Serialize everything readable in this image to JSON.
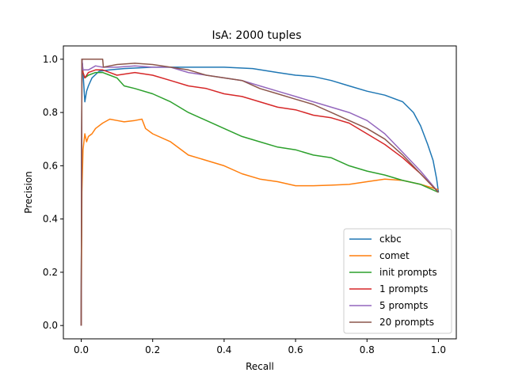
{
  "chart_data": {
    "type": "line",
    "title": "IsA: 2000 tuples",
    "xlabel": "Recall",
    "ylabel": "Precision",
    "xlim": [
      -0.05,
      1.05
    ],
    "ylim": [
      -0.05,
      1.05
    ],
    "xticks": [
      "0.0",
      "0.2",
      "0.4",
      "0.6",
      "0.8",
      "1.0"
    ],
    "yticks": [
      "0.0",
      "0.2",
      "0.4",
      "0.6",
      "0.8",
      "1.0"
    ],
    "grid": false,
    "legend_position": "lower-right",
    "series": [
      {
        "name": "ckbc",
        "color": "#1f77b4",
        "points": [
          [
            0,
            0
          ],
          [
            0.002,
            1.0
          ],
          [
            0.005,
            0.95
          ],
          [
            0.01,
            0.84
          ],
          [
            0.015,
            0.88
          ],
          [
            0.02,
            0.9
          ],
          [
            0.03,
            0.93
          ],
          [
            0.05,
            0.955
          ],
          [
            0.08,
            0.96
          ],
          [
            0.12,
            0.965
          ],
          [
            0.2,
            0.97
          ],
          [
            0.3,
            0.97
          ],
          [
            0.4,
            0.97
          ],
          [
            0.48,
            0.965
          ],
          [
            0.55,
            0.95
          ],
          [
            0.6,
            0.94
          ],
          [
            0.65,
            0.935
          ],
          [
            0.7,
            0.92
          ],
          [
            0.75,
            0.9
          ],
          [
            0.8,
            0.88
          ],
          [
            0.85,
            0.865
          ],
          [
            0.9,
            0.84
          ],
          [
            0.93,
            0.8
          ],
          [
            0.95,
            0.75
          ],
          [
            0.97,
            0.68
          ],
          [
            0.985,
            0.62
          ],
          [
            0.995,
            0.55
          ],
          [
            1.0,
            0.5
          ]
        ]
      },
      {
        "name": "comet",
        "color": "#ff7f0e",
        "points": [
          [
            0,
            0
          ],
          [
            0.002,
            0.5
          ],
          [
            0.005,
            0.66
          ],
          [
            0.01,
            0.72
          ],
          [
            0.015,
            0.69
          ],
          [
            0.02,
            0.71
          ],
          [
            0.03,
            0.72
          ],
          [
            0.04,
            0.74
          ],
          [
            0.06,
            0.76
          ],
          [
            0.08,
            0.775
          ],
          [
            0.1,
            0.77
          ],
          [
            0.12,
            0.765
          ],
          [
            0.15,
            0.77
          ],
          [
            0.17,
            0.775
          ],
          [
            0.18,
            0.74
          ],
          [
            0.2,
            0.72
          ],
          [
            0.25,
            0.69
          ],
          [
            0.3,
            0.64
          ],
          [
            0.35,
            0.62
          ],
          [
            0.4,
            0.6
          ],
          [
            0.45,
            0.57
          ],
          [
            0.5,
            0.55
          ],
          [
            0.55,
            0.54
          ],
          [
            0.6,
            0.525
          ],
          [
            0.65,
            0.525
          ],
          [
            0.7,
            0.527
          ],
          [
            0.75,
            0.53
          ],
          [
            0.8,
            0.54
          ],
          [
            0.85,
            0.55
          ],
          [
            0.9,
            0.545
          ],
          [
            0.95,
            0.53
          ],
          [
            1.0,
            0.51
          ]
        ]
      },
      {
        "name": "init prompts",
        "color": "#2ca02c",
        "points": [
          [
            0,
            0
          ],
          [
            0.002,
            1.0
          ],
          [
            0.005,
            0.95
          ],
          [
            0.01,
            0.93
          ],
          [
            0.02,
            0.94
          ],
          [
            0.04,
            0.95
          ],
          [
            0.06,
            0.95
          ],
          [
            0.08,
            0.94
          ],
          [
            0.1,
            0.93
          ],
          [
            0.12,
            0.9
          ],
          [
            0.15,
            0.89
          ],
          [
            0.2,
            0.87
          ],
          [
            0.25,
            0.84
          ],
          [
            0.3,
            0.8
          ],
          [
            0.35,
            0.77
          ],
          [
            0.4,
            0.74
          ],
          [
            0.45,
            0.71
          ],
          [
            0.5,
            0.69
          ],
          [
            0.55,
            0.67
          ],
          [
            0.6,
            0.66
          ],
          [
            0.65,
            0.64
          ],
          [
            0.7,
            0.63
          ],
          [
            0.75,
            0.6
          ],
          [
            0.8,
            0.58
          ],
          [
            0.85,
            0.565
          ],
          [
            0.9,
            0.545
          ],
          [
            0.95,
            0.53
          ],
          [
            1.0,
            0.5
          ]
        ]
      },
      {
        "name": "1 prompts",
        "color": "#d62728",
        "points": [
          [
            0,
            0
          ],
          [
            0.002,
            1.0
          ],
          [
            0.005,
            0.95
          ],
          [
            0.01,
            0.93
          ],
          [
            0.02,
            0.95
          ],
          [
            0.04,
            0.96
          ],
          [
            0.06,
            0.96
          ],
          [
            0.08,
            0.95
          ],
          [
            0.1,
            0.94
          ],
          [
            0.15,
            0.95
          ],
          [
            0.2,
            0.94
          ],
          [
            0.25,
            0.92
          ],
          [
            0.3,
            0.9
          ],
          [
            0.35,
            0.89
          ],
          [
            0.4,
            0.87
          ],
          [
            0.45,
            0.86
          ],
          [
            0.5,
            0.84
          ],
          [
            0.55,
            0.82
          ],
          [
            0.6,
            0.81
          ],
          [
            0.65,
            0.79
          ],
          [
            0.7,
            0.78
          ],
          [
            0.75,
            0.76
          ],
          [
            0.8,
            0.72
          ],
          [
            0.85,
            0.68
          ],
          [
            0.9,
            0.63
          ],
          [
            0.95,
            0.57
          ],
          [
            1.0,
            0.5
          ]
        ]
      },
      {
        "name": "5 prompts",
        "color": "#9467bd",
        "points": [
          [
            0,
            0
          ],
          [
            0.002,
            1.0
          ],
          [
            0.005,
            0.96
          ],
          [
            0.02,
            0.96
          ],
          [
            0.04,
            0.975
          ],
          [
            0.06,
            0.97
          ],
          [
            0.1,
            0.97
          ],
          [
            0.15,
            0.975
          ],
          [
            0.2,
            0.97
          ],
          [
            0.25,
            0.97
          ],
          [
            0.3,
            0.95
          ],
          [
            0.35,
            0.94
          ],
          [
            0.4,
            0.93
          ],
          [
            0.45,
            0.92
          ],
          [
            0.5,
            0.9
          ],
          [
            0.55,
            0.88
          ],
          [
            0.6,
            0.86
          ],
          [
            0.65,
            0.84
          ],
          [
            0.7,
            0.82
          ],
          [
            0.75,
            0.8
          ],
          [
            0.8,
            0.77
          ],
          [
            0.85,
            0.72
          ],
          [
            0.9,
            0.65
          ],
          [
            0.95,
            0.58
          ],
          [
            1.0,
            0.5
          ]
        ]
      },
      {
        "name": "20 prompts",
        "color": "#8c564b",
        "points": [
          [
            0,
            0
          ],
          [
            0.002,
            1.0
          ],
          [
            0.06,
            1.0
          ],
          [
            0.062,
            0.97
          ],
          [
            0.08,
            0.975
          ],
          [
            0.1,
            0.98
          ],
          [
            0.15,
            0.985
          ],
          [
            0.2,
            0.98
          ],
          [
            0.25,
            0.97
          ],
          [
            0.3,
            0.96
          ],
          [
            0.35,
            0.94
          ],
          [
            0.4,
            0.93
          ],
          [
            0.45,
            0.92
          ],
          [
            0.5,
            0.89
          ],
          [
            0.55,
            0.87
          ],
          [
            0.6,
            0.85
          ],
          [
            0.65,
            0.83
          ],
          [
            0.7,
            0.8
          ],
          [
            0.75,
            0.77
          ],
          [
            0.8,
            0.74
          ],
          [
            0.85,
            0.7
          ],
          [
            0.9,
            0.64
          ],
          [
            0.95,
            0.57
          ],
          [
            1.0,
            0.5
          ]
        ]
      }
    ]
  }
}
